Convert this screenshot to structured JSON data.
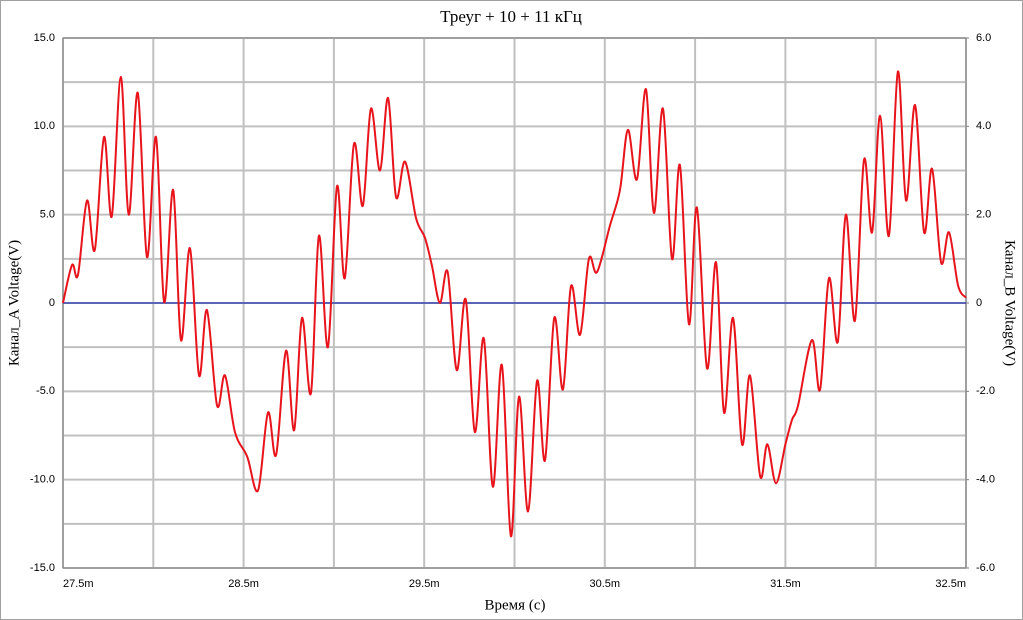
{
  "chart_data": {
    "type": "line",
    "title": "Треуг + 10 + 11 кГц",
    "xlabel": "Время (с)",
    "ylabel": "Канал_A Voltage(V)",
    "y2label": "Канал_B Voltage(V)",
    "xlim": [
      27.5,
      32.5
    ],
    "ylim": [
      -15,
      15
    ],
    "y2lim": [
      -6,
      6
    ],
    "xticks": [
      {
        "value": 27.5,
        "label": "27.5m"
      },
      {
        "value": 28.5,
        "label": "28.5m"
      },
      {
        "value": 29.5,
        "label": "29.5m"
      },
      {
        "value": 30.5,
        "label": "30.5m"
      },
      {
        "value": 31.5,
        "label": "31.5m"
      },
      {
        "value": 32.5,
        "label": "32.5m"
      }
    ],
    "xminor": [
      28.0,
      29.0,
      30.0,
      31.0,
      32.0
    ],
    "yticks": [
      {
        "value": 15,
        "label": "15.0"
      },
      {
        "value": 10,
        "label": "10.0"
      },
      {
        "value": 5,
        "label": "5.0"
      },
      0,
      {
        "value": -5,
        "label": "-5.0"
      },
      {
        "value": -10,
        "label": "-10.0"
      },
      {
        "value": -15,
        "label": "-15.0"
      }
    ],
    "yminor": [
      12.5,
      7.5,
      2.5,
      -2.5,
      -7.5,
      -12.5
    ],
    "y2ticks": [
      {
        "value": 6,
        "label": "6.0"
      },
      {
        "value": 4,
        "label": "4.0"
      },
      {
        "value": 2,
        "label": "2.0"
      },
      0,
      {
        "value": -2,
        "label": "-2.0"
      },
      {
        "value": -4,
        "label": "-4.0"
      },
      {
        "value": -6,
        "label": "-6.0"
      }
    ],
    "grid": true,
    "series": [
      {
        "color": "#e8141c",
        "x": [
          27.5,
          27.55,
          27.583,
          27.633,
          27.676,
          27.727,
          27.77,
          27.82,
          27.864,
          27.914,
          27.965,
          28.015,
          28.06,
          28.11,
          28.153,
          28.203,
          28.253,
          28.297,
          28.353,
          28.397,
          28.452,
          28.52,
          28.58,
          28.635,
          28.68,
          28.735,
          28.78,
          28.823,
          28.873,
          28.917,
          28.967,
          29.017,
          29.06,
          29.111,
          29.16,
          29.205,
          29.255,
          29.3,
          29.344,
          29.394,
          29.455,
          29.504,
          29.543,
          29.587,
          29.63,
          29.68,
          29.73,
          29.78,
          29.83,
          29.88,
          29.93,
          29.98,
          30.025,
          30.075,
          30.125,
          30.169,
          30.22,
          30.268,
          30.313,
          30.363,
          30.412,
          30.457,
          30.529,
          30.584,
          30.628,
          30.678,
          30.728,
          30.772,
          30.822,
          30.872,
          30.916,
          30.966,
          31.01,
          31.066,
          31.116,
          31.16,
          31.21,
          31.26,
          31.304,
          31.36,
          31.4,
          31.448,
          31.5,
          31.537,
          31.57,
          31.647,
          31.692,
          31.741,
          31.79,
          31.835,
          31.885,
          31.935,
          31.98,
          32.024,
          32.073,
          32.123,
          32.168,
          32.218,
          32.268,
          32.312,
          32.362,
          32.406,
          32.456,
          32.5
        ],
        "values": [
          0,
          2.15,
          1.6,
          5.8,
          3.0,
          9.4,
          4.9,
          12.8,
          5.0,
          11.9,
          2.6,
          9.4,
          0.05,
          6.4,
          -2.1,
          3.1,
          -4.1,
          -0.4,
          -5.8,
          -4.1,
          -7.3,
          -8.7,
          -10.6,
          -6.2,
          -8.6,
          -2.7,
          -7.2,
          -0.85,
          -5.1,
          3.8,
          -2.5,
          6.6,
          1.4,
          9.0,
          5.5,
          11.0,
          7.5,
          11.6,
          6.0,
          8.0,
          4.8,
          3.7,
          2.1,
          0,
          1.75,
          -3.8,
          0.2,
          -7.3,
          -2.0,
          -10.4,
          -3.5,
          -13.2,
          -5.3,
          -11.8,
          -4.4,
          -8.9,
          -0.85,
          -4.9,
          0.96,
          -1.8,
          2.5,
          1.75,
          4.4,
          6.4,
          9.8,
          7.0,
          12.1,
          5.1,
          11.0,
          2.5,
          7.8,
          -1.2,
          5.4,
          -3.7,
          2.3,
          -6.2,
          -0.85,
          -8.0,
          -4.1,
          -9.8,
          -8.0,
          -10.2,
          -8.0,
          -6.6,
          -5.8,
          -2.1,
          -4.9,
          1.4,
          -2.2,
          5.0,
          -1.0,
          8.1,
          4.0,
          10.6,
          3.8,
          13.1,
          5.8,
          11.2,
          4.0,
          7.6,
          2.3,
          4.0,
          1.0,
          0.3
        ]
      },
      {
        "color": "#1f2fb0",
        "axis": "y2",
        "x": [
          27.5,
          32.5
        ],
        "values": [
          0,
          0
        ]
      }
    ]
  }
}
